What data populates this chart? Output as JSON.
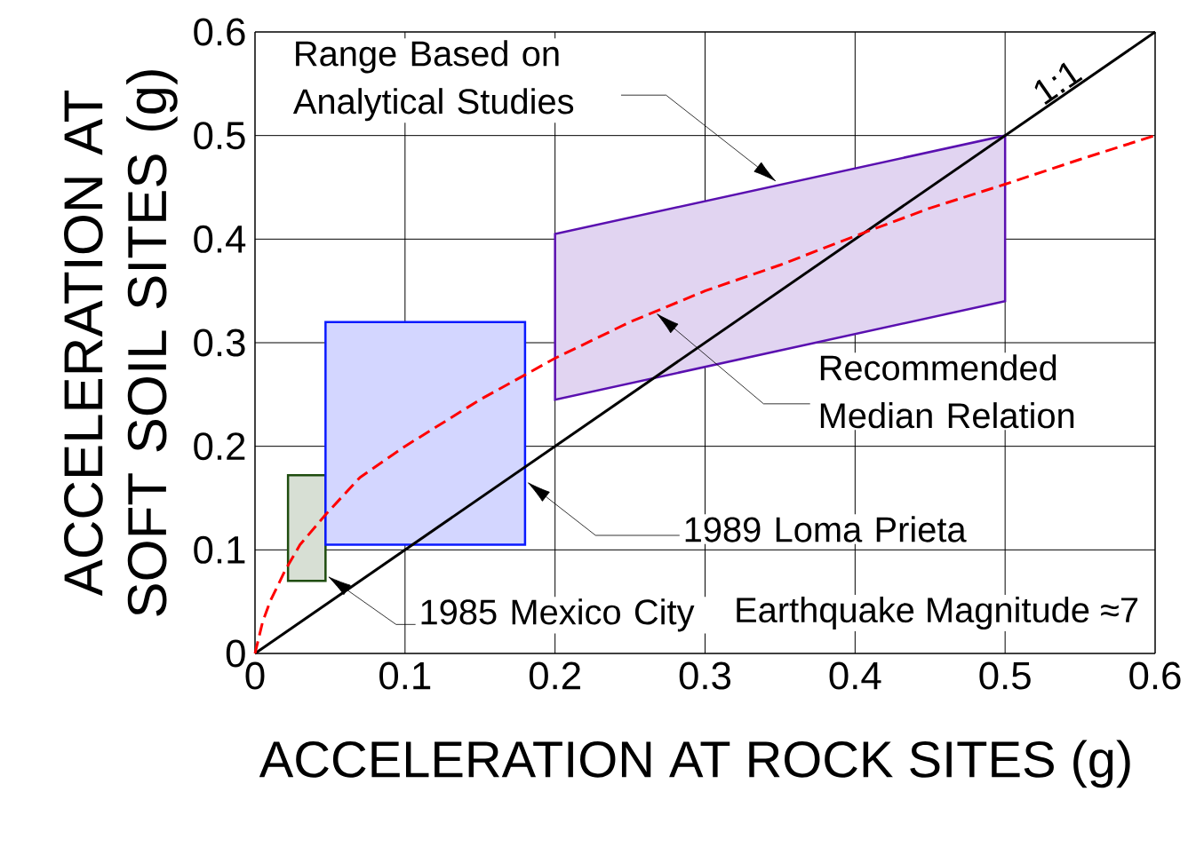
{
  "chart_data": {
    "type": "line",
    "xlabel": "ACCELERATION AT ROCK SITES (g)",
    "ylabel": "ACCELERATION AT SOFT SOIL SITES (g)",
    "xlim": [
      0,
      0.6
    ],
    "ylim": [
      0,
      0.6
    ],
    "xticks": [
      0,
      0.1,
      0.2,
      0.3,
      0.4,
      0.5,
      0.6
    ],
    "yticks": [
      0,
      0.1,
      0.2,
      0.3,
      0.4,
      0.5,
      0.6
    ],
    "grid": true,
    "annotations": [
      {
        "text": "1985 Mexico City",
        "x": 0.048,
        "y": 0.075
      },
      "1989 Loma Prieta",
      "Range Based on Analytical Studies",
      "Recommended Median Relation",
      "Earthquake Magnitude ≈7"
    ],
    "series": [
      {
        "type": "area",
        "color": "#1f4d0f",
        "x": [
          0.022,
          0.022,
          0.047,
          0.047
        ],
        "values": [
          0.07,
          0.172,
          0.172,
          0.07
        ]
      },
      {
        "type": "area",
        "color": "#0a1aff",
        "x": [
          0.047,
          0.047,
          0.18,
          0.18
        ],
        "values": [
          0.105,
          0.32,
          0.32,
          0.105
        ]
      },
      {
        "type": "area",
        "color": "#5a10b0",
        "x": [
          0.2,
          0.2,
          0.5,
          0.5
        ],
        "values": [
          0.245,
          0.405,
          0.5,
          0.34
        ]
      },
      {
        "name": "1:1",
        "color": "#000000",
        "line_style": "solid",
        "x": [
          0,
          0.6
        ],
        "values": [
          0,
          0.6
        ]
      },
      {
        "color": "#ff0000",
        "line_style": "dashed",
        "x": [
          0,
          0.005,
          0.01,
          0.02,
          0.03,
          0.047,
          0.07,
          0.1,
          0.15,
          0.2,
          0.25,
          0.3,
          0.35,
          0.4,
          0.45,
          0.5,
          0.55,
          0.6
        ],
        "values": [
          0,
          0.03,
          0.05,
          0.08,
          0.105,
          0.134,
          0.17,
          0.2,
          0.245,
          0.285,
          0.32,
          0.35,
          0.375,
          0.403,
          0.43,
          0.453,
          0.477,
          0.5
        ]
      }
    ]
  }
}
